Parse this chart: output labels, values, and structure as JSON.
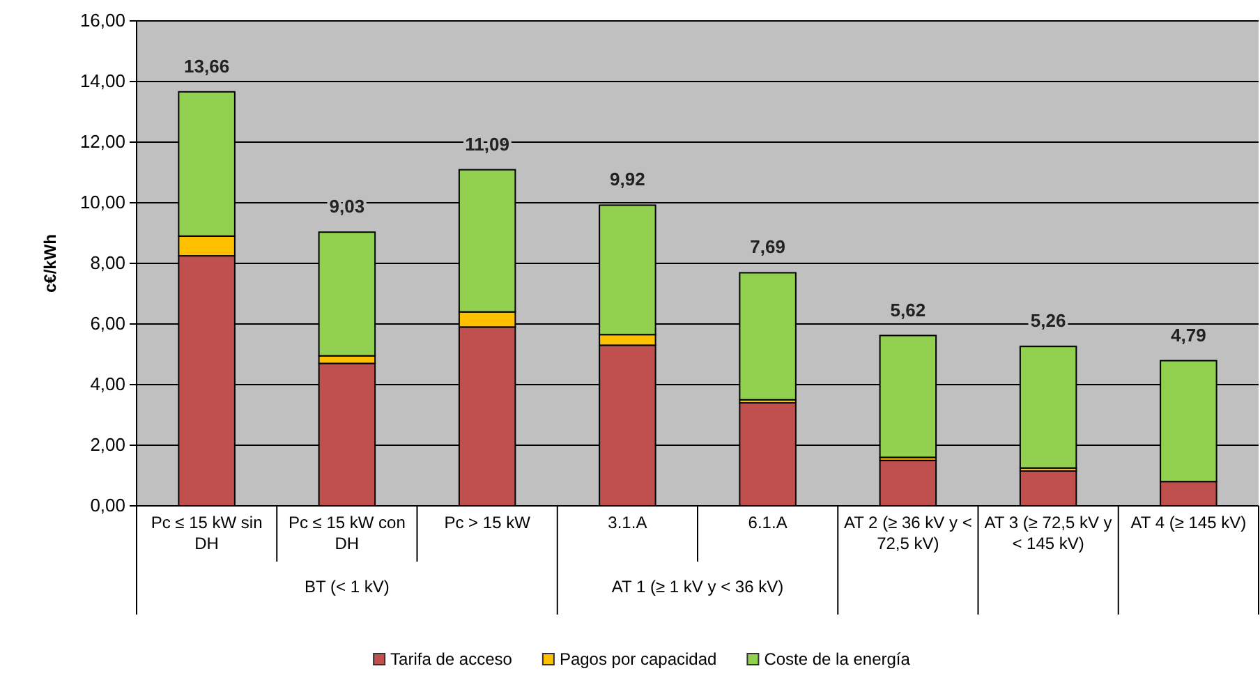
{
  "chart_data": {
    "type": "bar",
    "stacked": true,
    "ylabel": "c€/kWh",
    "categories": [
      "Pc ≤ 15 kW sin DH",
      "Pc ≤ 15 kW con DH",
      "Pc > 15 kW",
      "3.1.A",
      "6.1.A",
      "AT 2 (≥ 36 kV y < 72,5 kV)",
      "AT 3 (≥ 72,5 kV y < 145 kV)",
      "AT 4 (≥ 145 kV)"
    ],
    "series": [
      {
        "name": "Tarifa de acceso",
        "color": "#c0504d",
        "values": [
          8.25,
          4.7,
          5.9,
          5.3,
          3.4,
          1.5,
          1.15,
          0.8
        ]
      },
      {
        "name": "Pagos por capacidad",
        "color": "#ffc000",
        "values": [
          0.65,
          0.25,
          0.5,
          0.35,
          0.1,
          0.1,
          0.1,
          null
        ]
      },
      {
        "name": "Coste de la energía",
        "color": "#92d050",
        "values": [
          4.76,
          4.08,
          4.69,
          4.27,
          4.19,
          4.02,
          4.01,
          3.99
        ]
      }
    ],
    "totals": [
      "13,66",
      "9,03",
      "11,09",
      "9,92",
      "7,69",
      "5,62",
      "5,26",
      "4,79"
    ],
    "annotations": [
      "BT (< 1 kV)",
      "AT 1 (≥ 1 kV y < 36 kV)"
    ],
    "ylim": [
      0,
      16
    ],
    "yticks": [
      {
        "value": 0,
        "label": "0,00"
      },
      {
        "value": 2,
        "label": "2,00"
      },
      {
        "value": 4,
        "label": "4,00"
      },
      {
        "value": 6,
        "label": "6,00"
      },
      {
        "value": 8,
        "label": "8,00"
      },
      {
        "value": 10,
        "label": "10,00"
      },
      {
        "value": 12,
        "label": "12,00"
      },
      {
        "value": 14,
        "label": "14,00"
      },
      {
        "value": 16,
        "label": "16,00"
      }
    ],
    "grid": "y",
    "legend": "bottom"
  }
}
